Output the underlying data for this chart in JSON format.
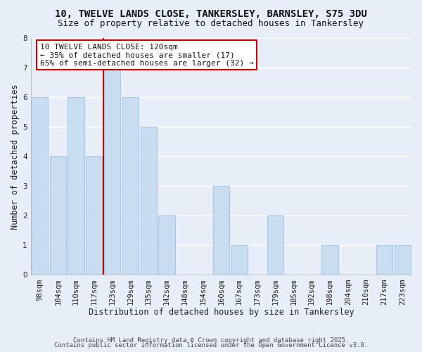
{
  "title": "10, TWELVE LANDS CLOSE, TANKERSLEY, BARNSLEY, S75 3DU",
  "subtitle": "Size of property relative to detached houses in Tankersley",
  "xlabel": "Distribution of detached houses by size in Tankersley",
  "ylabel": "Number of detached properties",
  "categories": [
    "98sqm",
    "104sqm",
    "110sqm",
    "117sqm",
    "123sqm",
    "129sqm",
    "135sqm",
    "142sqm",
    "148sqm",
    "154sqm",
    "160sqm",
    "167sqm",
    "173sqm",
    "179sqm",
    "185sqm",
    "192sqm",
    "198sqm",
    "204sqm",
    "210sqm",
    "217sqm",
    "223sqm"
  ],
  "values": [
    6,
    4,
    6,
    4,
    7,
    6,
    5,
    2,
    0,
    0,
    3,
    1,
    0,
    2,
    0,
    0,
    1,
    0,
    0,
    1,
    1
  ],
  "bar_color": "#c8ddf0",
  "bar_edge_color": "#a8c8e8",
  "vline_color": "#cc0000",
  "vline_x": 3.5,
  "ylim": [
    0,
    8
  ],
  "yticks": [
    0,
    1,
    2,
    3,
    4,
    5,
    6,
    7,
    8
  ],
  "annotation_line1": "10 TWELVE LANDS CLOSE: 120sqm",
  "annotation_line2": "← 35% of detached houses are smaller (17)",
  "annotation_line3": "65% of semi-detached houses are larger (32) →",
  "annotation_box_color": "#ffffff",
  "annotation_box_edge": "#cc0000",
  "bg_color": "#e8eef8",
  "grid_color": "#ffffff",
  "footer_line1": "Contains HM Land Registry data © Crown copyright and database right 2025.",
  "footer_line2": "Contains public sector information licensed under the Open Government Licence v3.0.",
  "title_fontsize": 10,
  "subtitle_fontsize": 9,
  "axis_label_fontsize": 8.5,
  "tick_fontsize": 7.5,
  "annotation_fontsize": 8,
  "footer_fontsize": 6.5
}
